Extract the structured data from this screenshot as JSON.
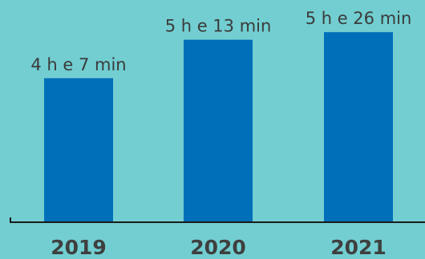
{
  "chart_data": {
    "type": "bar",
    "title": "",
    "xlabel": "",
    "ylabel": "",
    "categories": [
      "2019",
      "2020",
      "2021"
    ],
    "values": [
      247,
      313,
      326
    ],
    "value_unit": "minutes",
    "data_labels": [
      "4 h e 7 min",
      "5 h e 13 min",
      "5 h e 26 min"
    ],
    "ylim": [
      0,
      340
    ],
    "grid": false,
    "legend": "none",
    "colors": {
      "background": "#72ced1",
      "bar": "#006fb9",
      "axis": "#1a1a1a",
      "text": "#3b3b3b"
    }
  }
}
